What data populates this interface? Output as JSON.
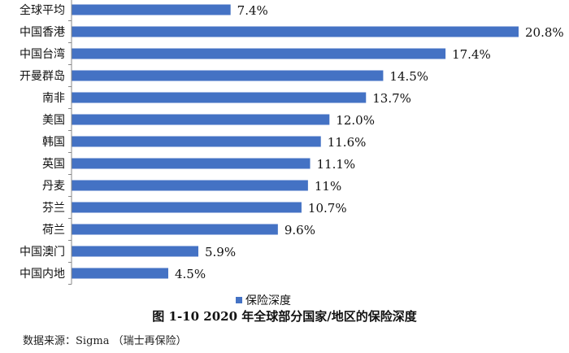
{
  "chart_data": {
    "type": "bar",
    "orientation": "horizontal",
    "categories": [
      "全球平均",
      "中国香港",
      "中国台湾",
      "开曼群岛",
      "南非",
      "美国",
      "韩国",
      "英国",
      "丹麦",
      "芬兰",
      "荷兰",
      "中国澳门",
      "中国内地"
    ],
    "series": [
      {
        "name": "保险深度",
        "values": [
          7.4,
          20.8,
          17.4,
          14.5,
          13.7,
          12.0,
          11.6,
          11.1,
          11,
          10.7,
          9.6,
          5.9,
          4.5
        ],
        "labels": [
          "7.4%",
          "20.8%",
          "17.4%",
          "14.5%",
          "13.7%",
          "12.0%",
          "11.6%",
          "11.1%",
          "11%",
          "10.7%",
          "9.6%",
          "5.9%",
          "4.5%"
        ],
        "color": "#4472C4"
      }
    ],
    "xlim": [
      0,
      20.8
    ],
    "grid": false,
    "legend": "bottom-center"
  },
  "caption": "图 1-10 2020 年全球部分国家/地区的保险深度",
  "source": "数据来源：Sigma （瑞士再保险）"
}
